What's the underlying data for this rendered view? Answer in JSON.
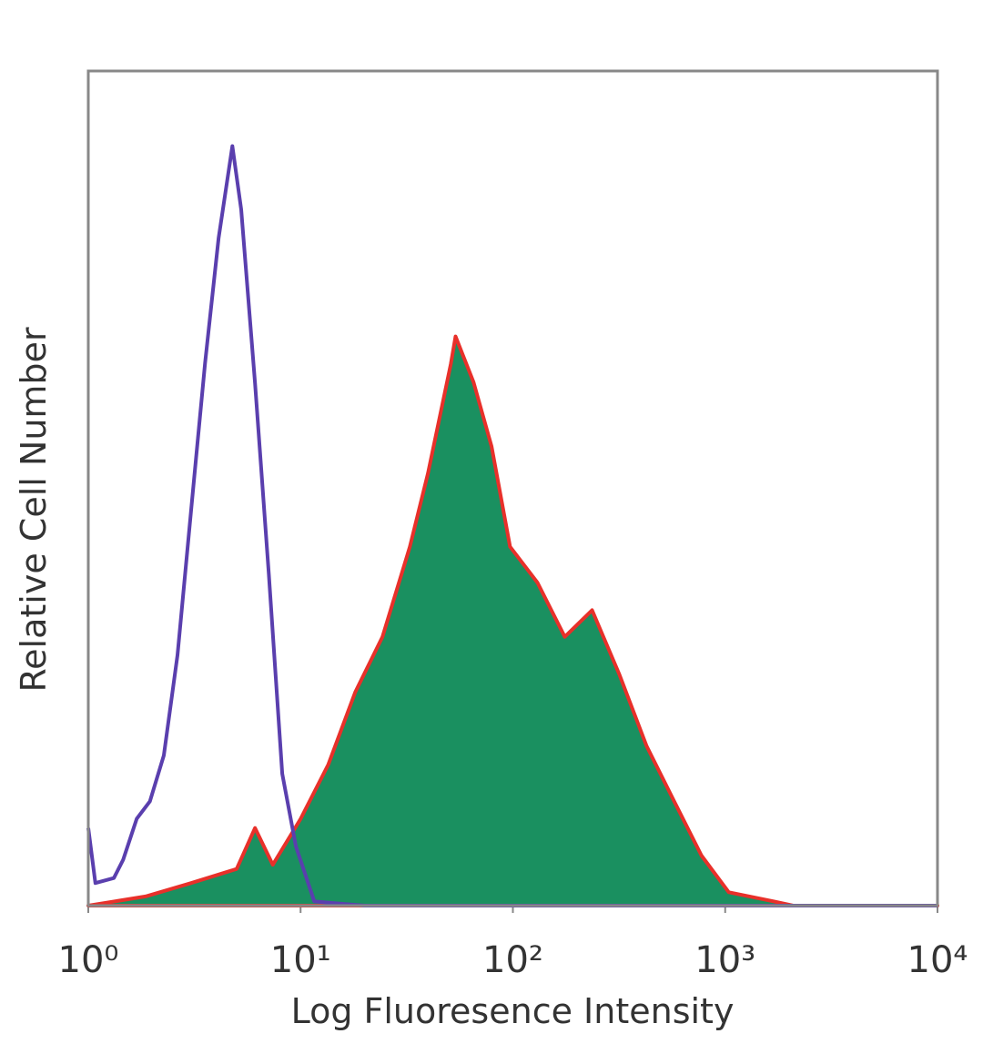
{
  "chart_data": {
    "type": "histogram_overlay",
    "xlabel": "Log Fluoresence Intensity",
    "ylabel": "Relative Cell Number",
    "xscale": "log",
    "xlim": [
      1,
      10000
    ],
    "xticks": [
      {
        "value": 1,
        "label": "10⁰"
      },
      {
        "value": 10,
        "label": "10¹"
      },
      {
        "value": 100,
        "label": "10²"
      },
      {
        "value": 1000,
        "label": "10³"
      },
      {
        "value": 10000,
        "label": "10⁴"
      }
    ],
    "ylim": [
      0,
      100
    ],
    "grid": false,
    "series": [
      {
        "color": "#5a3fae",
        "fill": "none",
        "x": [
          1,
          1.08,
          1.32,
          1.46,
          1.69,
          1.95,
          2.27,
          2.63,
          3.05,
          3.55,
          4.11,
          4.77,
          5.25,
          6.1,
          7.08,
          8.2,
          9.5,
          11.6,
          20,
          10000
        ],
        "values": [
          9.3,
          2.7,
          3.3,
          5.5,
          10.4,
          12.5,
          18,
          30,
          47.4,
          65,
          80,
          91,
          83.4,
          62.6,
          39.8,
          15.8,
          7.1,
          0.5,
          0,
          0
        ]
      },
      {
        "color": "#e8302a",
        "fill": "#1a9060",
        "x": [
          1,
          1.86,
          3.05,
          5.0,
          6.1,
          7.4,
          10,
          13.5,
          18.1,
          24.3,
          32.7,
          39.8,
          51,
          53.7,
          65.3,
          79.4,
          97,
          130.6,
          175.6,
          236,
          316,
          427,
          575,
          773,
          1040,
          1700,
          2090,
          10000
        ],
        "values": [
          0,
          1.1,
          2.7,
          4.4,
          9.3,
          4.9,
          10.4,
          16.9,
          25.6,
          32.2,
          43,
          51.8,
          64.9,
          68.2,
          62.7,
          55,
          43,
          38.7,
          32.2,
          35.4,
          27.8,
          19.1,
          12.5,
          6,
          1.6,
          0.5,
          0,
          0
        ]
      }
    ]
  }
}
